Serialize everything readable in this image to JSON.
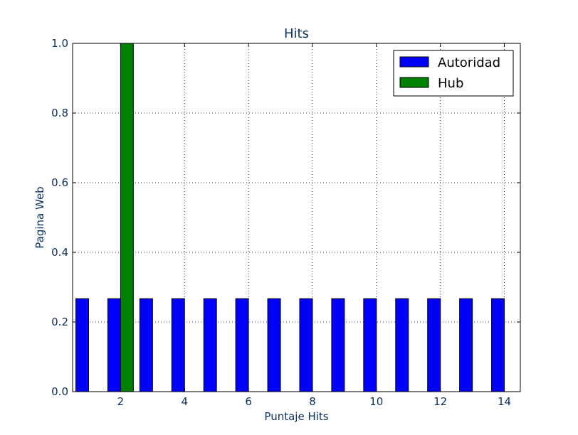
{
  "chart_data": {
    "type": "bar",
    "title": "Hits",
    "xlabel": "Puntaje Hits",
    "ylabel": "Pagina Web",
    "xlim": [
      0.5,
      14.5
    ],
    "ylim": [
      0,
      1.0
    ],
    "xticks": [
      2,
      4,
      6,
      8,
      10,
      12,
      14
    ],
    "xtick_labels": [
      "2",
      "4",
      "6",
      "8",
      "10",
      "12",
      "14"
    ],
    "yticks": [
      0.0,
      0.2,
      0.4,
      0.6,
      0.8,
      1.0
    ],
    "ytick_labels": [
      "0.0",
      "0.2",
      "0.4",
      "0.6",
      "0.8",
      "1.0"
    ],
    "grid": true,
    "legend_position": "top-right",
    "bar_width": 0.4,
    "series": [
      {
        "name": "Autoridad",
        "color": "#0000ff",
        "x": [
          1,
          2,
          3,
          4,
          5,
          6,
          7,
          8,
          9,
          10,
          11,
          12,
          13,
          14
        ],
        "offset": -0.2,
        "values": [
          0.267,
          0.267,
          0.267,
          0.267,
          0.267,
          0.267,
          0.267,
          0.267,
          0.267,
          0.267,
          0.267,
          0.267,
          0.267,
          0.267
        ]
      },
      {
        "name": "Hub",
        "color": "#008000",
        "x": [
          1,
          2,
          3,
          4,
          5,
          6,
          7,
          8,
          9,
          10,
          11,
          12,
          13,
          14
        ],
        "offset": 0.2,
        "values": [
          0,
          1.0,
          0,
          0,
          0,
          0,
          0,
          0,
          0,
          0,
          0,
          0,
          0,
          0
        ]
      }
    ]
  }
}
